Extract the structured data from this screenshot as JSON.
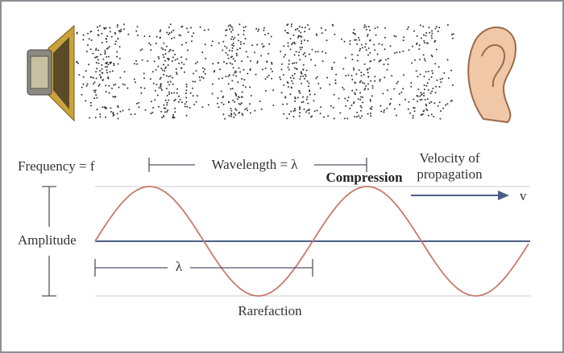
{
  "labels": {
    "frequency": "Frequency = f",
    "wavelength": "Wavelength = λ",
    "velocity_line1": "Velocity of",
    "velocity_line2": "propagation",
    "compression": "Compression",
    "velocity_symbol": "v",
    "amplitude": "Amplitude",
    "lambda": "λ",
    "rarefaction": "Rarefaction"
  }
}
